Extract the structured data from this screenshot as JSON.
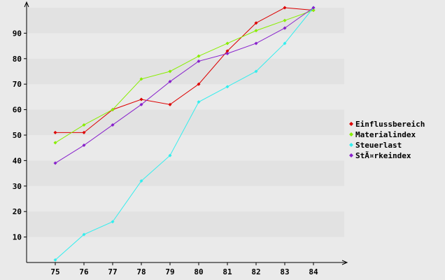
{
  "chart_data": {
    "type": "line",
    "x": [
      75,
      76,
      77,
      78,
      79,
      80,
      81,
      82,
      83,
      84
    ],
    "ylim": [
      0,
      100
    ],
    "yticks": [
      10,
      20,
      30,
      40,
      50,
      60,
      70,
      80,
      90
    ],
    "grid": true,
    "legend_position": "right",
    "background_band_colors": [
      "#e2e2e2",
      "#eaeaea"
    ],
    "series": [
      {
        "name": "Einflussbereich",
        "color": "#dd0000",
        "values": [
          51,
          51,
          60,
          64,
          62,
          70,
          83,
          94,
          100,
          99
        ]
      },
      {
        "name": "Materialindex",
        "color": "#88ee00",
        "values": [
          47,
          54,
          60,
          72,
          75,
          81,
          86,
          91,
          95,
          99
        ]
      },
      {
        "name": "Steuerlast",
        "color": "#33eeee",
        "values": [
          1,
          11,
          16,
          32,
          42,
          63,
          69,
          75,
          86,
          100
        ]
      },
      {
        "name": "StÃ¤rkeindex",
        "color": "#8822cc",
        "values": [
          39,
          46,
          54,
          62,
          71,
          79,
          82,
          86,
          92,
          100
        ]
      }
    ]
  }
}
